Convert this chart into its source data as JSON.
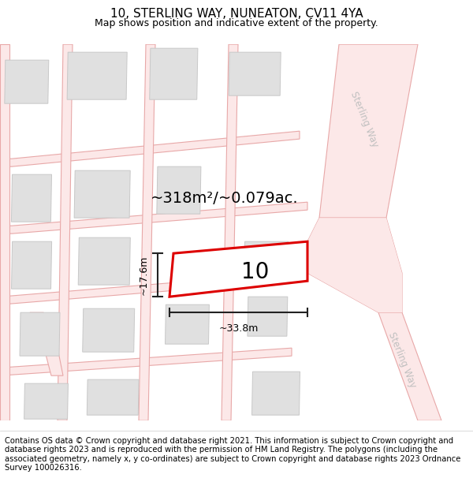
{
  "title": "10, STERLING WAY, NUNEATON, CV11 4YA",
  "subtitle": "Map shows position and indicative extent of the property.",
  "footer": "Contains OS data © Crown copyright and database right 2021. This information is subject to Crown copyright and database rights 2023 and is reproduced with the permission of HM Land Registry. The polygons (including the associated geometry, namely x, y co-ordinates) are subject to Crown copyright and database rights 2023 Ordnance Survey 100026316.",
  "area_label": "~318m²/~0.079ac.",
  "width_label": "~33.8m",
  "height_label": "~17.6m",
  "plot_number": "10",
  "map_bg": "#ffffff",
  "road_fill": "#fce8e8",
  "road_line": "#e8a8a8",
  "building_fill": "#e0e0e0",
  "building_line": "#c8c8c8",
  "plot_color": "#dd0000",
  "road_text_color": "#c0c0c0",
  "dim_color": "#222222",
  "title_fontsize": 11,
  "subtitle_fontsize": 9,
  "footer_fontsize": 7.2,
  "area_fontsize": 14,
  "plot_num_fontsize": 20,
  "dim_fontsize": 9
}
